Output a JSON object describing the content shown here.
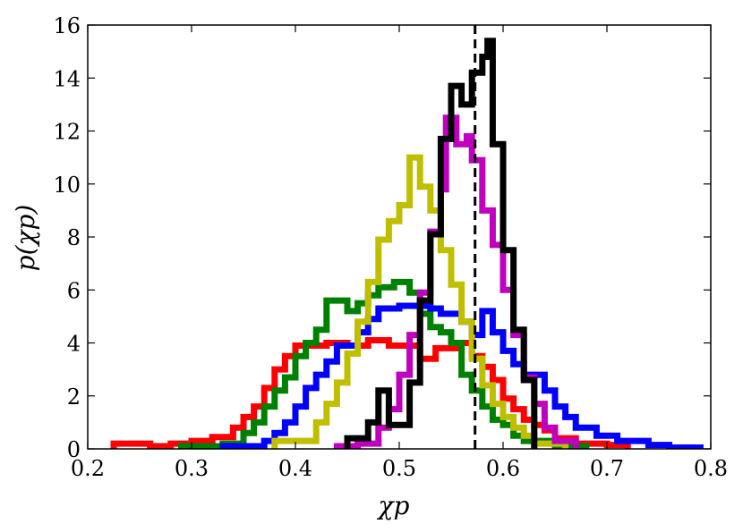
{
  "chart_data": {
    "type": "step-histogram",
    "xlabel": "χp",
    "ylabel": "p(χp)",
    "xlim": [
      0.2,
      0.8
    ],
    "ylim": [
      0,
      16
    ],
    "xticks": [
      "0.2",
      "0.3",
      "0.4",
      "0.5",
      "0.6",
      "0.7",
      "0.8"
    ],
    "yticks": [
      "0",
      "2",
      "4",
      "6",
      "8",
      "10",
      "12",
      "14",
      "16"
    ],
    "reference_line": {
      "x": 0.573,
      "style": "dashed",
      "color": "#000000"
    },
    "series": [
      {
        "color": "#ff0000",
        "points": [
          [
            0.225,
            0
          ],
          [
            0.225,
            0.2
          ],
          [
            0.26,
            0.2
          ],
          [
            0.26,
            0.1
          ],
          [
            0.28,
            0.1
          ],
          [
            0.28,
            0.2
          ],
          [
            0.3,
            0.2
          ],
          [
            0.3,
            0.3
          ],
          [
            0.32,
            0.3
          ],
          [
            0.32,
            0.45
          ],
          [
            0.34,
            0.45
          ],
          [
            0.34,
            0.8
          ],
          [
            0.35,
            0.8
          ],
          [
            0.35,
            1.2
          ],
          [
            0.36,
            1.2
          ],
          [
            0.36,
            1.6
          ],
          [
            0.37,
            1.6
          ],
          [
            0.37,
            2.3
          ],
          [
            0.38,
            2.3
          ],
          [
            0.38,
            3.0
          ],
          [
            0.39,
            3.0
          ],
          [
            0.39,
            3.5
          ],
          [
            0.4,
            3.5
          ],
          [
            0.4,
            3.9
          ],
          [
            0.43,
            3.9
          ],
          [
            0.43,
            4.0
          ],
          [
            0.45,
            4.0
          ],
          [
            0.45,
            3.9
          ],
          [
            0.47,
            3.9
          ],
          [
            0.47,
            4.1
          ],
          [
            0.49,
            4.1
          ],
          [
            0.49,
            3.9
          ],
          [
            0.52,
            3.9
          ],
          [
            0.52,
            3.4
          ],
          [
            0.535,
            3.4
          ],
          [
            0.535,
            3.8
          ],
          [
            0.555,
            3.8
          ],
          [
            0.555,
            4.0
          ],
          [
            0.57,
            4.0
          ],
          [
            0.57,
            3.5
          ],
          [
            0.58,
            3.5
          ],
          [
            0.58,
            3.1
          ],
          [
            0.59,
            3.1
          ],
          [
            0.59,
            2.6
          ],
          [
            0.6,
            2.6
          ],
          [
            0.6,
            1.9
          ],
          [
            0.61,
            1.9
          ],
          [
            0.61,
            1.5
          ],
          [
            0.62,
            1.5
          ],
          [
            0.62,
            1.1
          ],
          [
            0.63,
            1.1
          ],
          [
            0.63,
            0.9
          ],
          [
            0.64,
            0.9
          ],
          [
            0.64,
            0.7
          ],
          [
            0.65,
            0.7
          ],
          [
            0.65,
            0.4
          ],
          [
            0.67,
            0.4
          ],
          [
            0.67,
            0.2
          ],
          [
            0.7,
            0.2
          ],
          [
            0.7,
            0.15
          ],
          [
            0.72,
            0.15
          ],
          [
            0.72,
            0
          ]
        ]
      },
      {
        "color": "#008000",
        "points": [
          [
            0.29,
            0
          ],
          [
            0.29,
            0.1
          ],
          [
            0.33,
            0.1
          ],
          [
            0.33,
            0.2
          ],
          [
            0.35,
            0.2
          ],
          [
            0.35,
            0.6
          ],
          [
            0.36,
            0.6
          ],
          [
            0.36,
            1.0
          ],
          [
            0.37,
            1.0
          ],
          [
            0.37,
            1.6
          ],
          [
            0.38,
            1.6
          ],
          [
            0.38,
            2.2
          ],
          [
            0.39,
            2.2
          ],
          [
            0.39,
            2.7
          ],
          [
            0.4,
            2.7
          ],
          [
            0.4,
            3.5
          ],
          [
            0.41,
            3.5
          ],
          [
            0.41,
            4.0
          ],
          [
            0.42,
            4.0
          ],
          [
            0.42,
            4.5
          ],
          [
            0.43,
            4.5
          ],
          [
            0.43,
            5.6
          ],
          [
            0.45,
            5.6
          ],
          [
            0.45,
            5.2
          ],
          [
            0.46,
            5.2
          ],
          [
            0.46,
            5.5
          ],
          [
            0.47,
            5.5
          ],
          [
            0.47,
            5.8
          ],
          [
            0.48,
            5.8
          ],
          [
            0.48,
            6.1
          ],
          [
            0.495,
            6.1
          ],
          [
            0.495,
            6.3
          ],
          [
            0.51,
            6.3
          ],
          [
            0.51,
            5.9
          ],
          [
            0.52,
            5.9
          ],
          [
            0.52,
            5.1
          ],
          [
            0.53,
            5.1
          ],
          [
            0.53,
            4.6
          ],
          [
            0.54,
            4.6
          ],
          [
            0.54,
            4.4
          ],
          [
            0.55,
            4.4
          ],
          [
            0.55,
            4.0
          ],
          [
            0.56,
            4.0
          ],
          [
            0.56,
            2.8
          ],
          [
            0.57,
            2.8
          ],
          [
            0.57,
            2.2
          ],
          [
            0.58,
            2.2
          ],
          [
            0.58,
            1.6
          ],
          [
            0.59,
            1.6
          ],
          [
            0.59,
            1.1
          ],
          [
            0.6,
            1.1
          ],
          [
            0.6,
            0.9
          ],
          [
            0.61,
            0.9
          ],
          [
            0.61,
            0.5
          ],
          [
            0.62,
            0.5
          ],
          [
            0.62,
            0.3
          ],
          [
            0.65,
            0.3
          ],
          [
            0.65,
            0.1
          ],
          [
            0.68,
            0.1
          ],
          [
            0.68,
            0
          ]
        ]
      },
      {
        "color": "#0000ff",
        "points": [
          [
            0.33,
            0
          ],
          [
            0.33,
            0.1
          ],
          [
            0.37,
            0.1
          ],
          [
            0.37,
            0.3
          ],
          [
            0.38,
            0.3
          ],
          [
            0.38,
            0.6
          ],
          [
            0.39,
            0.6
          ],
          [
            0.39,
            1.0
          ],
          [
            0.4,
            1.0
          ],
          [
            0.4,
            1.6
          ],
          [
            0.41,
            1.6
          ],
          [
            0.41,
            2.3
          ],
          [
            0.42,
            2.3
          ],
          [
            0.42,
            2.8
          ],
          [
            0.43,
            2.8
          ],
          [
            0.43,
            3.3
          ],
          [
            0.44,
            3.3
          ],
          [
            0.44,
            3.9
          ],
          [
            0.46,
            3.9
          ],
          [
            0.46,
            4.4
          ],
          [
            0.47,
            4.4
          ],
          [
            0.47,
            4.9
          ],
          [
            0.48,
            4.9
          ],
          [
            0.48,
            5.3
          ],
          [
            0.5,
            5.3
          ],
          [
            0.5,
            5.4
          ],
          [
            0.53,
            5.4
          ],
          [
            0.53,
            5.3
          ],
          [
            0.54,
            5.3
          ],
          [
            0.54,
            5.1
          ],
          [
            0.56,
            5.1
          ],
          [
            0.56,
            4.8
          ],
          [
            0.57,
            4.8
          ],
          [
            0.57,
            4.3
          ],
          [
            0.58,
            4.3
          ],
          [
            0.58,
            5.2
          ],
          [
            0.59,
            5.2
          ],
          [
            0.59,
            4.4
          ],
          [
            0.6,
            4.4
          ],
          [
            0.6,
            3.7
          ],
          [
            0.61,
            3.7
          ],
          [
            0.61,
            3.2
          ],
          [
            0.62,
            3.2
          ],
          [
            0.62,
            2.8
          ],
          [
            0.64,
            2.8
          ],
          [
            0.64,
            2.2
          ],
          [
            0.65,
            2.2
          ],
          [
            0.65,
            1.6
          ],
          [
            0.66,
            1.6
          ],
          [
            0.66,
            1.2
          ],
          [
            0.67,
            1.2
          ],
          [
            0.67,
            0.8
          ],
          [
            0.69,
            0.8
          ],
          [
            0.69,
            0.5
          ],
          [
            0.71,
            0.5
          ],
          [
            0.71,
            0.3
          ],
          [
            0.74,
            0.3
          ],
          [
            0.74,
            0.15
          ],
          [
            0.76,
            0.15
          ],
          [
            0.76,
            0.05
          ],
          [
            0.79,
            0.05
          ],
          [
            0.79,
            0
          ]
        ]
      },
      {
        "color": "#bfbf00",
        "points": [
          [
            0.38,
            0
          ],
          [
            0.38,
            0.3
          ],
          [
            0.42,
            0.3
          ],
          [
            0.42,
            1.0
          ],
          [
            0.43,
            1.0
          ],
          [
            0.43,
            1.7
          ],
          [
            0.44,
            1.7
          ],
          [
            0.44,
            2.5
          ],
          [
            0.45,
            2.5
          ],
          [
            0.45,
            3.6
          ],
          [
            0.46,
            3.6
          ],
          [
            0.46,
            4.8
          ],
          [
            0.47,
            4.8
          ],
          [
            0.47,
            6.3
          ],
          [
            0.48,
            6.3
          ],
          [
            0.48,
            7.9
          ],
          [
            0.49,
            7.9
          ],
          [
            0.49,
            8.6
          ],
          [
            0.5,
            8.6
          ],
          [
            0.5,
            9.2
          ],
          [
            0.51,
            9.2
          ],
          [
            0.51,
            11.0
          ],
          [
            0.52,
            11.0
          ],
          [
            0.52,
            9.9
          ],
          [
            0.53,
            9.9
          ],
          [
            0.53,
            9.0
          ],
          [
            0.54,
            9.0
          ],
          [
            0.54,
            7.5
          ],
          [
            0.55,
            7.5
          ],
          [
            0.55,
            6.2
          ],
          [
            0.56,
            6.2
          ],
          [
            0.56,
            4.8
          ],
          [
            0.57,
            4.8
          ],
          [
            0.57,
            3.4
          ],
          [
            0.58,
            3.4
          ],
          [
            0.58,
            2.4
          ],
          [
            0.59,
            2.4
          ],
          [
            0.59,
            1.7
          ],
          [
            0.6,
            1.7
          ],
          [
            0.6,
            1.2
          ],
          [
            0.61,
            1.2
          ],
          [
            0.61,
            0.8
          ],
          [
            0.62,
            0.8
          ],
          [
            0.62,
            0.5
          ],
          [
            0.63,
            0.5
          ],
          [
            0.63,
            0.2
          ],
          [
            0.66,
            0.2
          ],
          [
            0.66,
            0
          ]
        ]
      },
      {
        "color": "#bf00bf",
        "points": [
          [
            0.44,
            0
          ],
          [
            0.44,
            0.1
          ],
          [
            0.46,
            0.1
          ],
          [
            0.46,
            0.2
          ],
          [
            0.48,
            0.2
          ],
          [
            0.48,
            0.8
          ],
          [
            0.49,
            0.8
          ],
          [
            0.49,
            1.5
          ],
          [
            0.5,
            1.5
          ],
          [
            0.5,
            2.8
          ],
          [
            0.51,
            2.8
          ],
          [
            0.51,
            4.3
          ],
          [
            0.52,
            4.3
          ],
          [
            0.52,
            5.9
          ],
          [
            0.53,
            5.9
          ],
          [
            0.53,
            8.2
          ],
          [
            0.54,
            8.2
          ],
          [
            0.54,
            9.8
          ],
          [
            0.545,
            9.8
          ],
          [
            0.545,
            12.5
          ],
          [
            0.555,
            12.5
          ],
          [
            0.555,
            11.5
          ],
          [
            0.565,
            11.5
          ],
          [
            0.565,
            11.8
          ],
          [
            0.57,
            11.8
          ],
          [
            0.57,
            10.9
          ],
          [
            0.58,
            10.9
          ],
          [
            0.58,
            9.0
          ],
          [
            0.59,
            9.0
          ],
          [
            0.59,
            7.7
          ],
          [
            0.6,
            7.7
          ],
          [
            0.6,
            6.0
          ],
          [
            0.61,
            6.0
          ],
          [
            0.61,
            4.3
          ],
          [
            0.62,
            4.3
          ],
          [
            0.62,
            2.7
          ],
          [
            0.63,
            2.7
          ],
          [
            0.63,
            1.7
          ],
          [
            0.64,
            1.7
          ],
          [
            0.64,
            0.8
          ],
          [
            0.65,
            0.8
          ],
          [
            0.65,
            0.3
          ],
          [
            0.67,
            0.3
          ],
          [
            0.67,
            0
          ]
        ]
      },
      {
        "color": "#000000",
        "points": [
          [
            0.45,
            0
          ],
          [
            0.45,
            0.4
          ],
          [
            0.47,
            0.4
          ],
          [
            0.47,
            1.0
          ],
          [
            0.48,
            1.0
          ],
          [
            0.48,
            2.2
          ],
          [
            0.49,
            2.2
          ],
          [
            0.49,
            0.9
          ],
          [
            0.51,
            0.9
          ],
          [
            0.51,
            2.5
          ],
          [
            0.52,
            2.5
          ],
          [
            0.52,
            5.6
          ],
          [
            0.53,
            5.6
          ],
          [
            0.53,
            8.1
          ],
          [
            0.54,
            8.1
          ],
          [
            0.54,
            11.7
          ],
          [
            0.55,
            11.7
          ],
          [
            0.55,
            13.7
          ],
          [
            0.56,
            13.7
          ],
          [
            0.56,
            13.0
          ],
          [
            0.57,
            13.0
          ],
          [
            0.57,
            14.2
          ],
          [
            0.58,
            14.2
          ],
          [
            0.58,
            14.8
          ],
          [
            0.585,
            14.8
          ],
          [
            0.585,
            15.4
          ],
          [
            0.59,
            15.4
          ],
          [
            0.59,
            11.5
          ],
          [
            0.6,
            11.5
          ],
          [
            0.6,
            7.5
          ],
          [
            0.61,
            7.5
          ],
          [
            0.61,
            4.5
          ],
          [
            0.62,
            4.5
          ],
          [
            0.62,
            2.6
          ],
          [
            0.63,
            2.6
          ],
          [
            0.63,
            0
          ]
        ]
      }
    ]
  }
}
